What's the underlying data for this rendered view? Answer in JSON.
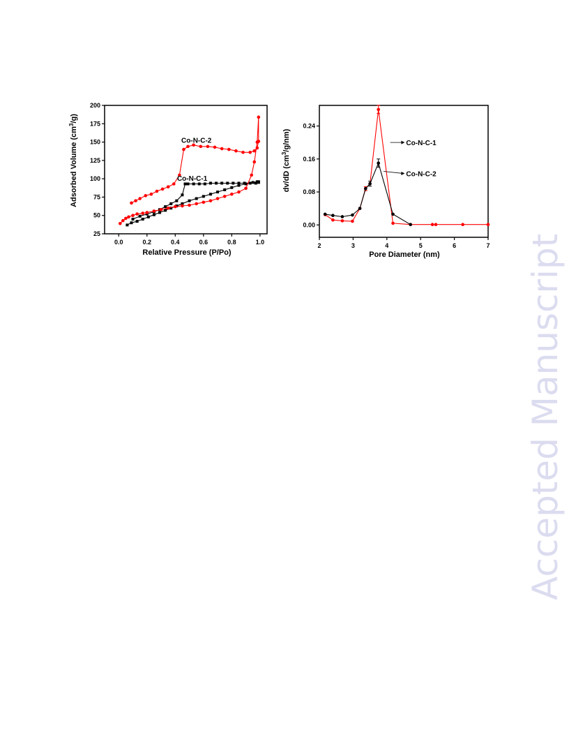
{
  "watermark": "Accepted Manuscript",
  "chart_data": [
    {
      "type": "line",
      "title": "",
      "xlabel": "Relative Pressure (P/Po)",
      "ylabel": "Adsorbed Volume (cm3/g)",
      "ylabel_parts": {
        "main": "Adsorbed Volume (cm",
        "sup": "3",
        "tail": "/g)"
      },
      "xlim": [
        -0.1,
        1.05
      ],
      "ylim": [
        25,
        200
      ],
      "xticks": [
        0.0,
        0.2,
        0.4,
        0.6,
        0.8,
        1.0
      ],
      "xtick_labels": [
        "0.0",
        "0.2",
        "0.4",
        "0.6",
        "0.8",
        "1.0"
      ],
      "yticks": [
        25,
        50,
        75,
        100,
        125,
        150,
        175,
        200
      ],
      "ytick_labels": [
        "25",
        "50",
        "75",
        "100",
        "125",
        "150",
        "175",
        "200"
      ],
      "grid": false,
      "legend": "none",
      "annotations": [
        {
          "text": "Co-N-C-2",
          "x": 0.55,
          "y": 153
        },
        {
          "text": "Co-N-C-1",
          "x": 0.52,
          "y": 101
        }
      ],
      "series": [
        {
          "name": "Co-N-C-1",
          "color": "#000000",
          "marker": "square",
          "x": [
            0.06,
            0.09,
            0.13,
            0.17,
            0.21,
            0.25,
            0.29,
            0.33,
            0.37,
            0.41,
            0.45,
            0.5,
            0.55,
            0.6,
            0.65,
            0.7,
            0.75,
            0.8,
            0.85,
            0.9,
            0.95,
            0.98,
            0.99,
            0.99,
            0.97,
            0.93,
            0.89,
            0.85,
            0.81,
            0.77,
            0.73,
            0.69,
            0.65,
            0.61,
            0.57,
            0.53,
            0.49,
            0.47,
            0.45,
            0.41,
            0.37,
            0.33,
            0.29,
            0.25,
            0.2,
            0.15,
            0.1
          ],
          "y": [
            37,
            40,
            42,
            45,
            48,
            51,
            54,
            57,
            60,
            63,
            66,
            70,
            73,
            76,
            79,
            82,
            85,
            88,
            91,
            93,
            95,
            96,
            96,
            95,
            94,
            94,
            94,
            94,
            94,
            94,
            94,
            94,
            94,
            93,
            93,
            93,
            93,
            93,
            78,
            70,
            66,
            62,
            58,
            55,
            52,
            49,
            45
          ]
        },
        {
          "name": "Co-N-C-2",
          "color": "#ff0000",
          "marker": "circle",
          "x": [
            0.01,
            0.03,
            0.05,
            0.07,
            0.1,
            0.13,
            0.17,
            0.2,
            0.25,
            0.3,
            0.35,
            0.4,
            0.45,
            0.5,
            0.55,
            0.6,
            0.65,
            0.7,
            0.75,
            0.8,
            0.85,
            0.9,
            0.94,
            0.96,
            0.98,
            0.99,
            0.99,
            0.98,
            0.96,
            0.93,
            0.88,
            0.83,
            0.78,
            0.73,
            0.68,
            0.63,
            0.58,
            0.53,
            0.49,
            0.46,
            0.43,
            0.39,
            0.35,
            0.31,
            0.27,
            0.23,
            0.19,
            0.15,
            0.12,
            0.09
          ],
          "y": [
            39,
            43,
            46,
            48,
            50,
            52,
            53,
            54,
            56,
            58,
            60,
            62,
            63,
            64,
            66,
            68,
            70,
            73,
            76,
            79,
            82,
            87,
            105,
            123,
            150,
            184,
            151,
            142,
            138,
            136,
            136,
            138,
            140,
            141,
            143,
            144,
            144,
            146,
            144,
            140,
            105,
            93,
            89,
            86,
            83,
            79,
            77,
            73,
            70,
            67
          ]
        }
      ]
    },
    {
      "type": "line",
      "title": "",
      "xlabel": "Pore Diameter (nm)",
      "ylabel": "dv/dD (cm3/g/nm)",
      "ylabel_parts": {
        "main": "dv/dD (cm",
        "sup": "3",
        "tail": "/g/nm)"
      },
      "xlim": [
        2,
        7
      ],
      "ylim": [
        -0.03,
        0.29
      ],
      "xticks": [
        2,
        3,
        4,
        5,
        6,
        7
      ],
      "xtick_labels": [
        "2",
        "3",
        "4",
        "5",
        "6",
        "7"
      ],
      "yticks": [
        0.0,
        0.08,
        0.16,
        0.24
      ],
      "ytick_labels": [
        "0.00",
        "0.08",
        "0.16",
        "0.24"
      ],
      "grid": false,
      "legend": "none",
      "annotations": [
        {
          "text": "Co-N-C-1",
          "x": 4.55,
          "y": 0.2,
          "arrow_from": [
            4.1,
            0.2
          ]
        },
        {
          "text": "Co-N-C-2",
          "x": 4.55,
          "y": 0.125,
          "arrow_from": [
            3.9,
            0.13
          ]
        }
      ],
      "series": [
        {
          "name": "Co-N-C-1",
          "color": "#ff0000",
          "marker": "circle",
          "x": [
            2.17,
            2.4,
            2.68,
            2.98,
            3.2,
            3.37,
            3.5,
            3.75,
            4.18,
            4.7,
            5.35,
            5.45,
            6.25,
            7.0
          ],
          "y": [
            0.025,
            0.012,
            0.01,
            0.009,
            0.04,
            0.088,
            0.1,
            0.28,
            0.004,
            0.001,
            0.001,
            0.001,
            0.001,
            0.001
          ],
          "error": [
            0,
            0,
            0,
            0,
            0,
            0.005,
            0,
            0.01,
            0,
            0,
            0,
            0,
            0,
            0
          ]
        },
        {
          "name": "Co-N-C-2",
          "color": "#000000",
          "marker": "circle",
          "x": [
            2.17,
            2.4,
            2.68,
            2.98,
            3.2,
            3.37,
            3.5,
            3.75,
            4.18,
            4.7
          ],
          "y": [
            0.026,
            0.023,
            0.02,
            0.024,
            0.04,
            0.088,
            0.1,
            0.15,
            0.026,
            0.001
          ],
          "error": [
            0,
            0,
            0,
            0,
            0,
            0,
            0.006,
            0.01,
            0,
            0
          ]
        }
      ]
    }
  ]
}
